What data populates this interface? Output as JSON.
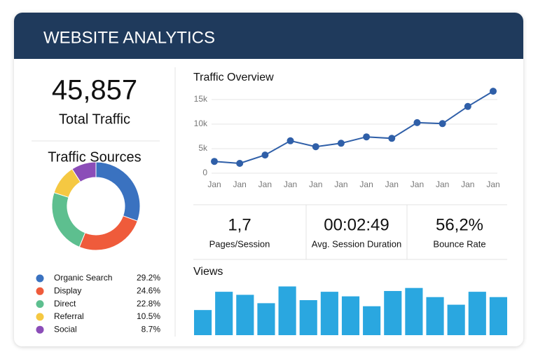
{
  "header": {
    "title": "WEBSITE ANALYTICS"
  },
  "total": {
    "value": "45,857",
    "label": "Total Traffic"
  },
  "stats": [
    {
      "value": "1,7",
      "label": "Pages/Session"
    },
    {
      "value": "00:02:49",
      "label": "Avg. Session Duration"
    },
    {
      "value": "56,2%",
      "label": "Bounce Rate"
    }
  ],
  "chart_data": [
    {
      "type": "donut",
      "title": "Traffic Sources",
      "categories": [
        "Organic Search",
        "Display",
        "Direct",
        "Referral",
        "Social"
      ],
      "values": [
        29.2,
        24.6,
        22.8,
        10.5,
        8.7
      ],
      "value_labels": [
        "29.2%",
        "24.6%",
        "22.8%",
        "10.5%",
        "8.7%"
      ],
      "colors": [
        "#3a72c0",
        "#ef5b3b",
        "#5dbf8f",
        "#f5c842",
        "#8b4db8"
      ]
    },
    {
      "type": "line",
      "title": "Traffic Overview",
      "categories": [
        "Jan",
        "Jan",
        "Jan",
        "Jan",
        "Jan",
        "Jan",
        "Jan",
        "Jan",
        "Jan",
        "Jan",
        "Jan",
        "Jan"
      ],
      "series": [
        {
          "color": "#2f5fa8",
          "values": [
            2400,
            2000,
            3700,
            6600,
            5400,
            6100,
            7400,
            7100,
            10300,
            10100,
            13600,
            16700
          ]
        }
      ],
      "ylim": [
        0,
        17500
      ],
      "yticks": [
        0,
        {
          "value": 5000,
          "label": "5k"
        },
        {
          "value": 10000,
          "label": "10k"
        },
        {
          "value": 15000,
          "label": "15k"
        }
      ],
      "grid": true
    },
    {
      "type": "bar",
      "title": "Views",
      "values": [
        33,
        57,
        53,
        42,
        64,
        46,
        57,
        51,
        38,
        58,
        62,
        50,
        40,
        57,
        50
      ],
      "color": "#2aa7e0",
      "ylim": [
        0,
        70
      ]
    }
  ]
}
